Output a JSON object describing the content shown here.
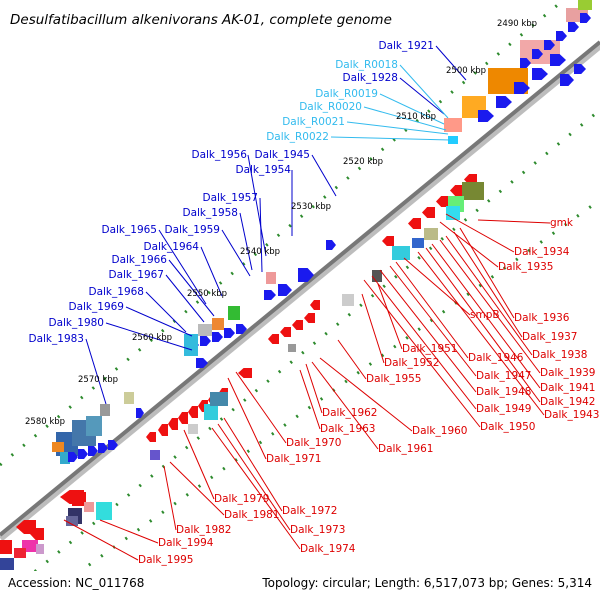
{
  "title": "Desulfatibacillum alkenivorans AK-01, complete genome",
  "footer": {
    "accession": "Accession: NC_011768",
    "summary": "Topology: circular; Length: 6,517,073 bp; Genes: 5,314"
  },
  "colors": {
    "backbone": "#8a8a8a",
    "tick": "#2e8b2e",
    "forward_label": "#0000cc",
    "rna_label": "#33bbee",
    "reverse_label": "#dd0000"
  },
  "scale_labels": [
    "2490 kbp",
    "2500 kbp",
    "2510 kbp",
    "2520 kbp",
    "2530 kbp",
    "2540 kbp",
    "2550 kbp",
    "2560 kbp",
    "2570 kbp",
    "2580 kbp"
  ],
  "forward_labels": [
    "Dalk_1921",
    "Dalk_1928",
    "Dalk_1945",
    "Dalk_1954",
    "Dalk_1956",
    "Dalk_1957",
    "Dalk_1958",
    "Dalk_1959",
    "Dalk_1964",
    "Dalk_1965",
    "Dalk_1966",
    "Dalk_1967",
    "Dalk_1968",
    "Dalk_1969",
    "Dalk_1980",
    "Dalk_1983"
  ],
  "rna_labels": [
    "Dalk_R0018",
    "Dalk_R0019",
    "Dalk_R0020",
    "Dalk_R0021",
    "Dalk_R0022"
  ],
  "reverse_labels": [
    "gmk",
    "Dalk_1934",
    "Dalk_1935",
    "Dalk_1936",
    "Dalk_1937",
    "Dalk_1938",
    "Dalk_1939",
    "Dalk_1941",
    "Dalk_1942",
    "Dalk_1943",
    "smpB",
    "Dalk_1946",
    "Dalk_1947",
    "Dalk_1948",
    "Dalk_1949",
    "Dalk_1950",
    "Dalk_1951",
    "Dalk_1952",
    "Dalk_1955",
    "Dalk_1960",
    "Dalk_1961",
    "Dalk_1962",
    "Dalk_1963",
    "Dalk_1970",
    "Dalk_1971",
    "Dalk_1972",
    "Dalk_1973",
    "Dalk_1974",
    "Dalk_1979",
    "Dalk_1981",
    "Dalk_1982",
    "Dalk_1994",
    "Dalk_1995"
  ]
}
